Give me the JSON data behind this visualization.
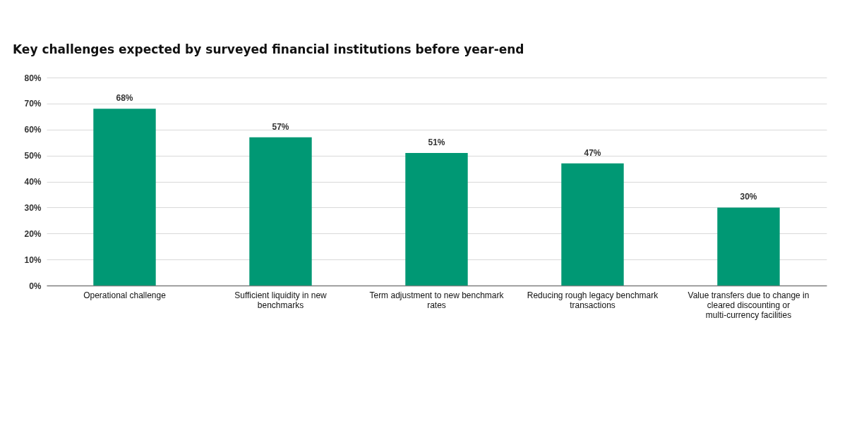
{
  "chart_data": {
    "type": "bar",
    "title": "Key challenges expected by surveyed financial institutions before year-end",
    "categories": [
      "Operational challenge",
      "Sufficient liquidity in new benchmarks",
      "Term adjustment to new benchmark rates",
      "Reducing rough legacy benchmark transactions",
      "Value transfers due to change in cleared discounting or multi-currency facilities"
    ],
    "values": [
      68,
      57,
      51,
      47,
      30
    ],
    "value_labels": [
      "68%",
      "57%",
      "51%",
      "47%",
      "30%"
    ],
    "color": "#009874",
    "ylim": [
      0,
      80
    ],
    "yticks": [
      {
        "value": 0,
        "label": "0%"
      },
      {
        "value": 10,
        "label": "10%"
      },
      {
        "value": 20,
        "label": "20%"
      },
      {
        "value": 30,
        "label": "30%"
      },
      {
        "value": 40,
        "label": "40%"
      },
      {
        "value": 50,
        "label": "50%"
      },
      {
        "value": 60,
        "label": "60%"
      },
      {
        "value": 70,
        "label": "70%"
      },
      {
        "value": 80,
        "label": "80%"
      }
    ],
    "grid": "y"
  }
}
